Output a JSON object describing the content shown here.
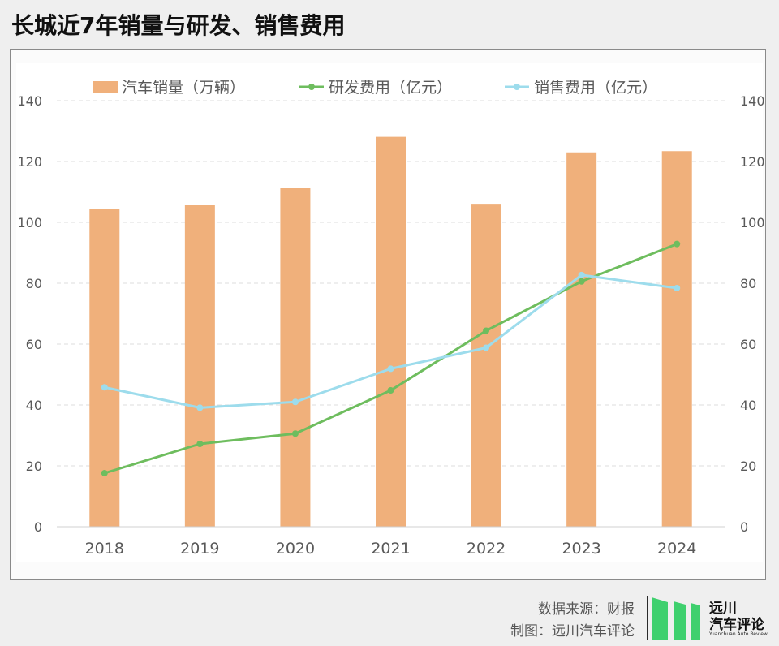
{
  "title": "长城近7年销量与研发、销售费用",
  "chart_data": {
    "type": "bar",
    "categories": [
      "2018",
      "2019",
      "2020",
      "2021",
      "2022",
      "2023",
      "2024"
    ],
    "series": [
      {
        "name": "汽车销量（万辆）",
        "type": "bar",
        "axis": "left",
        "color": "#f0b07b",
        "values": [
          104.3,
          105.8,
          111.2,
          128.1,
          106.1,
          123.0,
          123.4
        ]
      },
      {
        "name": "研发费用（亿元）",
        "type": "line",
        "axis": "right",
        "color": "#6ebd5e",
        "values": [
          17.6,
          27.2,
          30.6,
          44.8,
          64.4,
          80.6,
          92.9
        ]
      },
      {
        "name": "销售费用（亿元）",
        "type": "line",
        "axis": "right",
        "color": "#9ddcec",
        "values": [
          45.8,
          39.1,
          41.0,
          51.9,
          58.8,
          82.7,
          78.4
        ]
      }
    ],
    "ylim": [
      0,
      140
    ],
    "y2lim": [
      0,
      140
    ],
    "yticks": [
      "0",
      "20",
      "40",
      "60",
      "80",
      "100",
      "120",
      "140"
    ],
    "legend_position": "top",
    "grid": true
  },
  "footer": {
    "source": "数据来源：财报",
    "maker": "制图：远川汽车评论"
  },
  "logo": {
    "line1": "远川",
    "line2": "汽车评论",
    "line3": "Yuanchuan Auto Review"
  }
}
